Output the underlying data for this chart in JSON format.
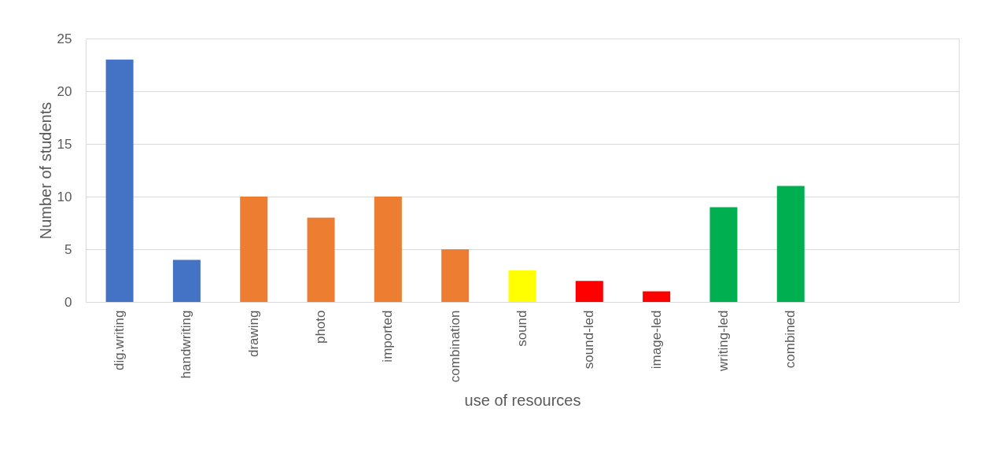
{
  "chart_data": {
    "type": "bar",
    "xlabel": "use of resources",
    "ylabel": "Number of students",
    "categories": [
      "dig.writing",
      "handwriting",
      "drawing",
      "photo",
      "imported",
      "combination",
      "sound",
      "sound-led",
      "image-led",
      "writing-led",
      "combined",
      null,
      null
    ],
    "values": [
      23,
      4,
      10,
      8,
      10,
      5,
      3,
      2,
      1,
      9,
      11,
      null,
      null
    ],
    "colors": [
      "#4472c4",
      "#4472c4",
      "#ed7d31",
      "#ed7d31",
      "#ed7d31",
      "#ed7d31",
      "#ffff00",
      "#ff0000",
      "#ff0000",
      "#00b050",
      "#00b050",
      "#00b050",
      "#00b050"
    ],
    "ylim": [
      0,
      25
    ],
    "yticks": [
      0,
      5,
      10,
      15,
      20,
      25
    ],
    "grid": "y"
  }
}
